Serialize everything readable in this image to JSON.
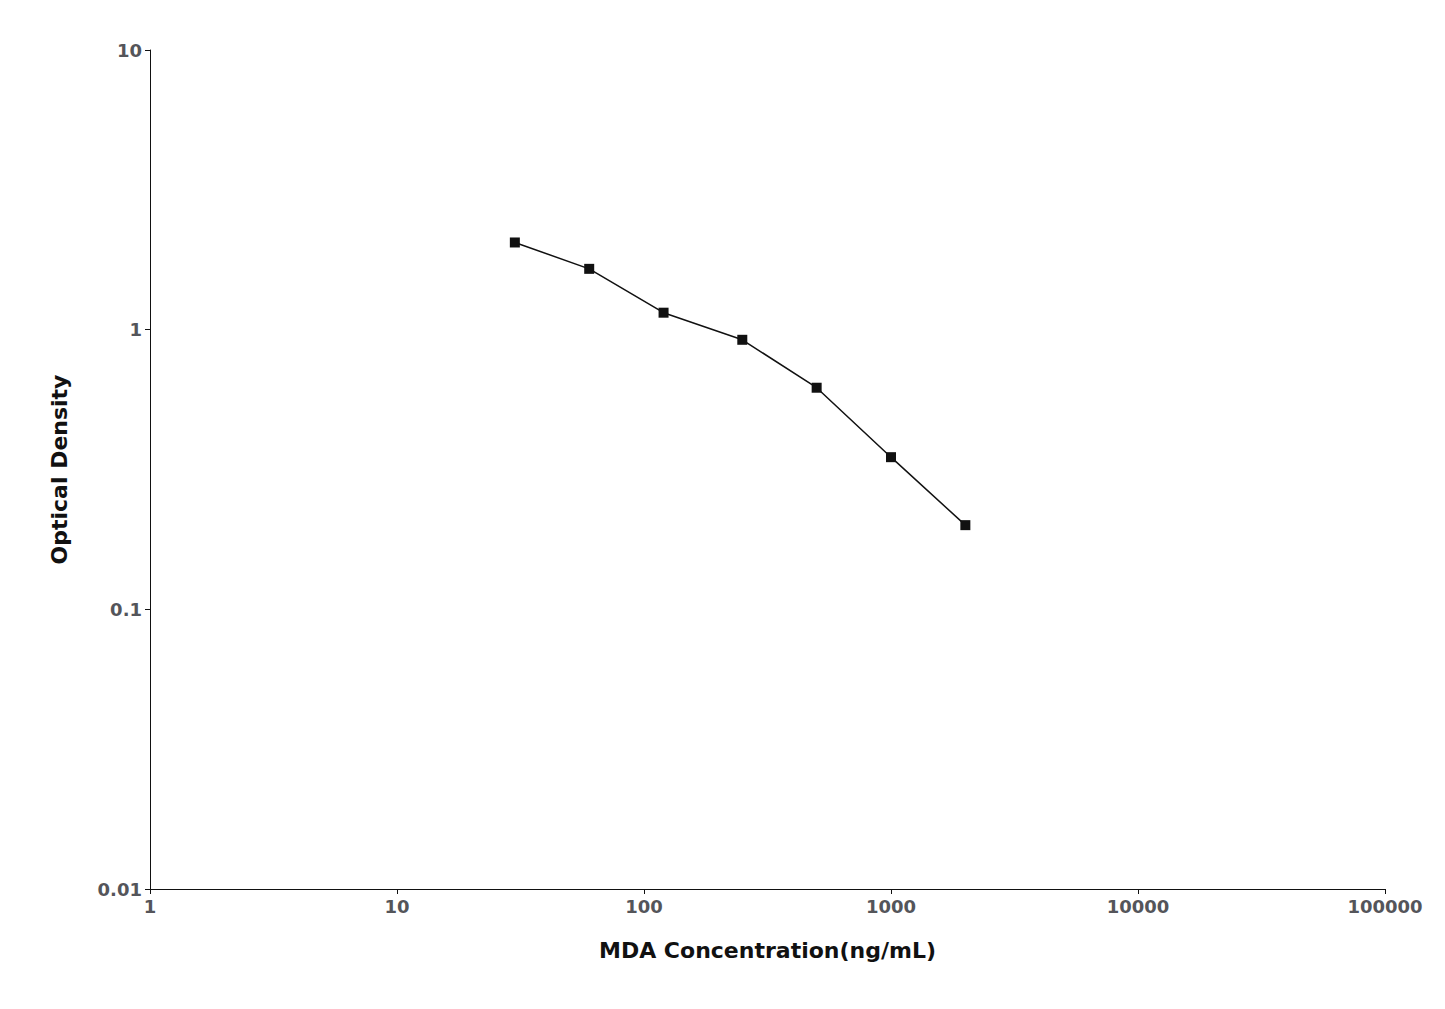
{
  "chart_data": {
    "type": "line",
    "x": [
      30,
      60,
      120,
      250,
      500,
      1000,
      2000
    ],
    "values": [
      2.05,
      1.65,
      1.15,
      0.92,
      0.62,
      0.35,
      0.2
    ],
    "xlabel": "MDA Concentration(ng/mL)",
    "ylabel": "Optical Density",
    "xlim": [
      1,
      100000
    ],
    "ylim": [
      0.01,
      10
    ],
    "xticks": [
      1,
      10,
      100,
      1000,
      10000,
      100000
    ],
    "yticks": [
      0.01,
      0.1,
      1,
      10
    ],
    "log": true,
    "grid": false,
    "color": "#111111",
    "marker": "square"
  }
}
